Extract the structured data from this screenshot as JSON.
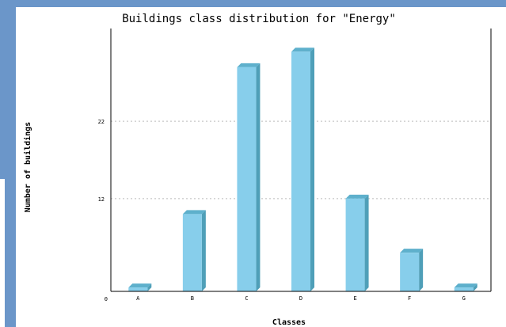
{
  "chart_data": {
    "type": "bar",
    "title": "Buildings class distribution for \"Energy\"",
    "xlabel": "Classes",
    "ylabel": "Number of buildings",
    "categories": [
      "A",
      "B",
      "C",
      "D",
      "E",
      "F",
      "G"
    ],
    "values": [
      0.5,
      10,
      29,
      31,
      12,
      5,
      0.5
    ],
    "yticks": [
      0,
      12,
      22
    ],
    "ylim": [
      0,
      34
    ],
    "grid": true,
    "bar_color": "#87ceeb",
    "bar_side_color": "#4f9fb8",
    "bar_top_color": "#5eb0cc",
    "grid_color": "#bbbbbb"
  }
}
